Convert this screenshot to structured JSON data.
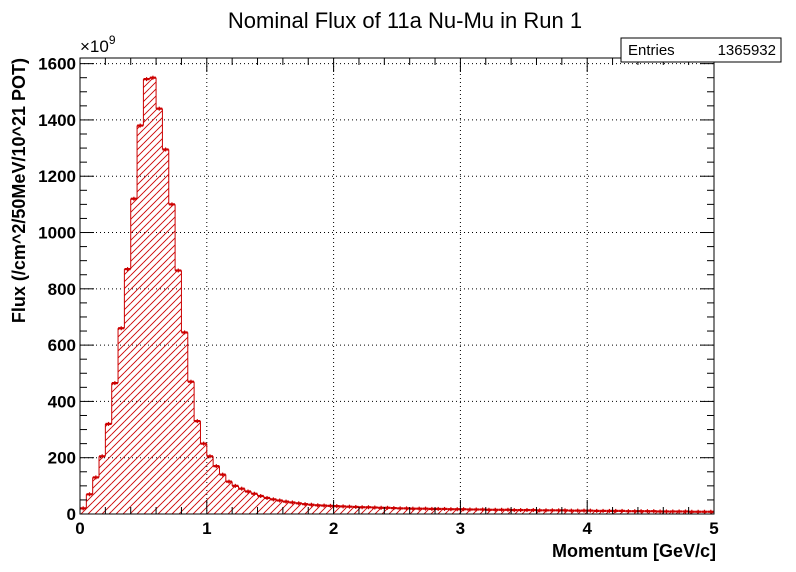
{
  "chart_data": {
    "type": "bar",
    "title": "Nominal Flux of 11a Nu-Mu in Run 1",
    "xlabel": "Momentum [GeV/c]",
    "ylabel": "Flux (/cm^2/50MeV/10^21 POT)",
    "y_multiplier": "×10",
    "y_multiplier_exponent": "9",
    "xlim": [
      0,
      5
    ],
    "ylim": [
      0,
      1620
    ],
    "bin_width": 0.05,
    "x_ticks": [
      "0",
      "1",
      "2",
      "3",
      "4",
      "5"
    ],
    "y_ticks": [
      "0",
      "200",
      "400",
      "600",
      "800",
      "1000",
      "1200",
      "1400",
      "1600"
    ],
    "grid": true,
    "stats_box": {
      "label": "Entries",
      "value": "1365932"
    },
    "values": [
      20,
      70,
      130,
      205,
      320,
      465,
      660,
      870,
      1120,
      1380,
      1545,
      1550,
      1440,
      1295,
      1100,
      865,
      645,
      470,
      330,
      250,
      205,
      170,
      140,
      115,
      100,
      90,
      80,
      72,
      64,
      57,
      52,
      48,
      44,
      41,
      38,
      35,
      33,
      31,
      30,
      29,
      28,
      27,
      26,
      25,
      24,
      24,
      23,
      22,
      22,
      21,
      20,
      20,
      19,
      19,
      19,
      18,
      18,
      18,
      17,
      17,
      17,
      16,
      16,
      16,
      15,
      15,
      15,
      15,
      14,
      14,
      14,
      14,
      13,
      13,
      13,
      13,
      13,
      12,
      12,
      12,
      12,
      11,
      11,
      11,
      11,
      11,
      10,
      10,
      10,
      10,
      10,
      9,
      9,
      9,
      9,
      9,
      8,
      8,
      8,
      8
    ],
    "colors": {
      "fill_hatch": "#cc0000",
      "line": "#cc0000",
      "frame": "#000000",
      "grid": "#000000"
    }
  }
}
